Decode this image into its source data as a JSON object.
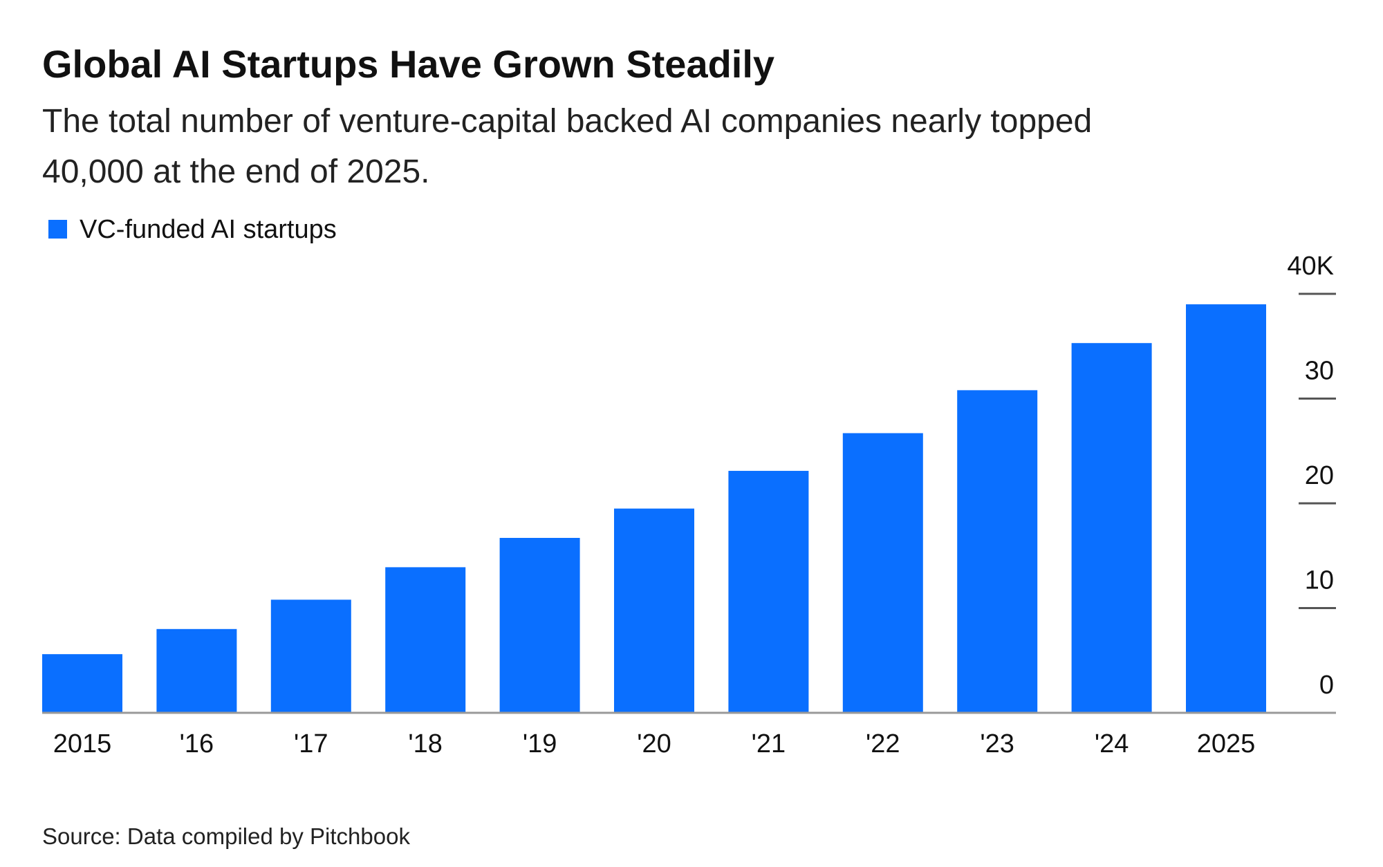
{
  "chart_data": {
    "type": "bar",
    "title": "Global AI Startups Have Grown Steadily",
    "subtitle": [
      "The total number of venture-capital backed AI companies nearly topped",
      "40,000 at the end of 2025."
    ],
    "source": "Source: Data compiled by Pitchbook",
    "categories": [
      "2015",
      "'16",
      "'17",
      "'18",
      "'19",
      "'20",
      "'21",
      "'22",
      "'23",
      "'24",
      "2025"
    ],
    "series": [
      {
        "name": "VC-funded AI startups",
        "color": "#0a6fff",
        "values": [
          5.6,
          8.0,
          10.8,
          13.9,
          16.7,
          19.5,
          23.1,
          26.7,
          30.8,
          35.3,
          39.0
        ]
      }
    ],
    "ylim": [
      0,
      40
    ],
    "yticks": [
      0,
      10,
      20,
      30,
      {
        "value": 40,
        "label": "40K"
      }
    ],
    "legend": "top-left"
  }
}
